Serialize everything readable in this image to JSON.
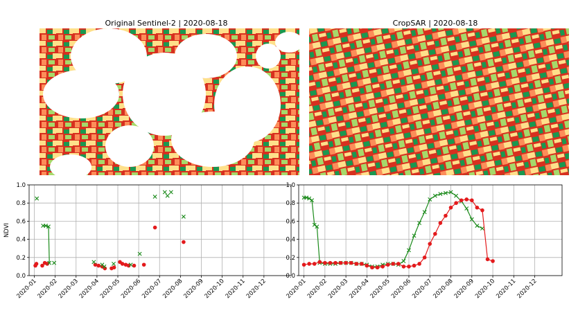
{
  "titles": {
    "left": "Original Sentinel-2 | 2020-08-18",
    "right": "CropSAR | 2020-08-18"
  },
  "colors": {
    "red": "#e31a1c",
    "green": "#1a8a1a",
    "map_red": "#d7301f",
    "map_orange": "#fc8d59",
    "map_yellow": "#fee08b",
    "map_lightgreen": "#a6d96a",
    "map_green": "#1a9850"
  },
  "chart_data": [
    {
      "type": "scatter",
      "title": "",
      "ylabel": "NDVI",
      "xlabel": "",
      "ylim": [
        0,
        1
      ],
      "yticks": [
        "0.0",
        "0.2",
        "0.4",
        "0.6",
        "0.8",
        "1.0"
      ],
      "xticks": [
        "2020-01",
        "2020-02",
        "2020-03",
        "2020-04",
        "2020-05",
        "2020-06",
        "2020-07",
        "2020-08",
        "2020-09",
        "2020-10",
        "2020-11",
        "2020-12"
      ],
      "grid": true,
      "series": [
        {
          "name": "red-dots",
          "marker": "circle",
          "color": "#e31a1c",
          "points": [
            [
              0.05,
              0.11
            ],
            [
              0.1,
              0.13
            ],
            [
              0.38,
              0.11
            ],
            [
              0.5,
              0.14
            ],
            [
              0.62,
              0.13
            ],
            [
              2.92,
              0.12
            ],
            [
              3.08,
              0.11
            ],
            [
              3.25,
              0.1
            ],
            [
              3.38,
              0.08
            ],
            [
              3.7,
              0.08
            ],
            [
              3.82,
              0.09
            ],
            [
              4.1,
              0.15
            ],
            [
              4.22,
              0.13
            ],
            [
              4.38,
              0.12
            ],
            [
              4.52,
              0.11
            ],
            [
              4.78,
              0.11
            ],
            [
              5.25,
              0.12
            ],
            [
              5.78,
              0.53
            ],
            [
              7.15,
              0.37
            ]
          ]
        },
        {
          "name": "green-x",
          "marker": "x",
          "color": "#1a8a1a",
          "points": [
            [
              0.12,
              0.85
            ],
            [
              0.95,
              0.14
            ],
            [
              2.85,
              0.15
            ],
            [
              3.25,
              0.12
            ],
            [
              3.35,
              0.1
            ],
            [
              3.8,
              0.13
            ],
            [
              4.62,
              0.12
            ],
            [
              5.05,
              0.24
            ],
            [
              5.78,
              0.87
            ],
            [
              6.25,
              0.92
            ],
            [
              6.38,
              0.88
            ],
            [
              6.55,
              0.92
            ],
            [
              7.15,
              0.65
            ]
          ]
        },
        {
          "name": "green-line-segment",
          "marker": "x",
          "line": true,
          "color": "#1a8a1a",
          "points": [
            [
              0.42,
              0.55
            ],
            [
              0.55,
              0.55
            ],
            [
              0.68,
              0.54
            ],
            [
              0.72,
              0.14
            ]
          ]
        }
      ]
    },
    {
      "type": "line",
      "title": "",
      "ylabel": "",
      "xlabel": "",
      "ylim": [
        0,
        1
      ],
      "yticks": [
        "0.0",
        "0.2",
        "0.4",
        "0.6",
        "0.8",
        "1.0"
      ],
      "xticks": [
        "2020-01",
        "2020-02",
        "2020-03",
        "2020-04",
        "2020-05",
        "2020-06",
        "2020-07",
        "2020-08",
        "2020-09",
        "2020-10",
        "2020-11",
        "2020-12"
      ],
      "grid": true,
      "series": [
        {
          "name": "green-x-line",
          "marker": "x",
          "color": "#1a8a1a",
          "points": [
            [
              0.0,
              0.86
            ],
            [
              0.12,
              0.86
            ],
            [
              0.25,
              0.85
            ],
            [
              0.38,
              0.83
            ],
            [
              0.5,
              0.56
            ],
            [
              0.62,
              0.54
            ],
            [
              0.75,
              0.14
            ],
            [
              1.0,
              0.13
            ],
            [
              1.25,
              0.13
            ],
            [
              1.5,
              0.13
            ],
            [
              1.75,
              0.14
            ],
            [
              2.0,
              0.14
            ],
            [
              2.25,
              0.14
            ],
            [
              2.5,
              0.13
            ],
            [
              2.75,
              0.13
            ],
            [
              3.0,
              0.12
            ],
            [
              3.25,
              0.1
            ],
            [
              3.5,
              0.1
            ],
            [
              3.75,
              0.12
            ],
            [
              4.0,
              0.13
            ],
            [
              4.25,
              0.13
            ],
            [
              4.5,
              0.12
            ],
            [
              4.75,
              0.16
            ],
            [
              5.0,
              0.28
            ],
            [
              5.25,
              0.44
            ],
            [
              5.5,
              0.58
            ],
            [
              5.75,
              0.7
            ],
            [
              6.0,
              0.84
            ],
            [
              6.25,
              0.88
            ],
            [
              6.5,
              0.9
            ],
            [
              6.75,
              0.91
            ],
            [
              7.0,
              0.92
            ],
            [
              7.25,
              0.88
            ],
            [
              7.5,
              0.82
            ],
            [
              7.75,
              0.74
            ],
            [
              8.0,
              0.62
            ],
            [
              8.25,
              0.55
            ],
            [
              8.5,
              0.52
            ]
          ]
        },
        {
          "name": "red-dot-line",
          "marker": "circle",
          "color": "#e31a1c",
          "points": [
            [
              0.0,
              0.12
            ],
            [
              0.25,
              0.13
            ],
            [
              0.5,
              0.13
            ],
            [
              0.75,
              0.15
            ],
            [
              1.0,
              0.14
            ],
            [
              1.25,
              0.14
            ],
            [
              1.5,
              0.14
            ],
            [
              1.75,
              0.14
            ],
            [
              2.0,
              0.14
            ],
            [
              2.25,
              0.14
            ],
            [
              2.5,
              0.13
            ],
            [
              2.75,
              0.13
            ],
            [
              3.0,
              0.11
            ],
            [
              3.25,
              0.09
            ],
            [
              3.5,
              0.09
            ],
            [
              3.75,
              0.1
            ],
            [
              4.0,
              0.12
            ],
            [
              4.25,
              0.13
            ],
            [
              4.5,
              0.13
            ],
            [
              4.75,
              0.1
            ],
            [
              5.0,
              0.1
            ],
            [
              5.25,
              0.11
            ],
            [
              5.5,
              0.13
            ],
            [
              5.75,
              0.2
            ],
            [
              6.0,
              0.35
            ],
            [
              6.25,
              0.46
            ],
            [
              6.5,
              0.58
            ],
            [
              6.75,
              0.66
            ],
            [
              7.0,
              0.75
            ],
            [
              7.25,
              0.8
            ],
            [
              7.5,
              0.83
            ],
            [
              7.75,
              0.84
            ],
            [
              8.0,
              0.83
            ],
            [
              8.25,
              0.75
            ],
            [
              8.5,
              0.72
            ],
            [
              8.75,
              0.18
            ],
            [
              9.0,
              0.16
            ]
          ]
        }
      ]
    }
  ]
}
